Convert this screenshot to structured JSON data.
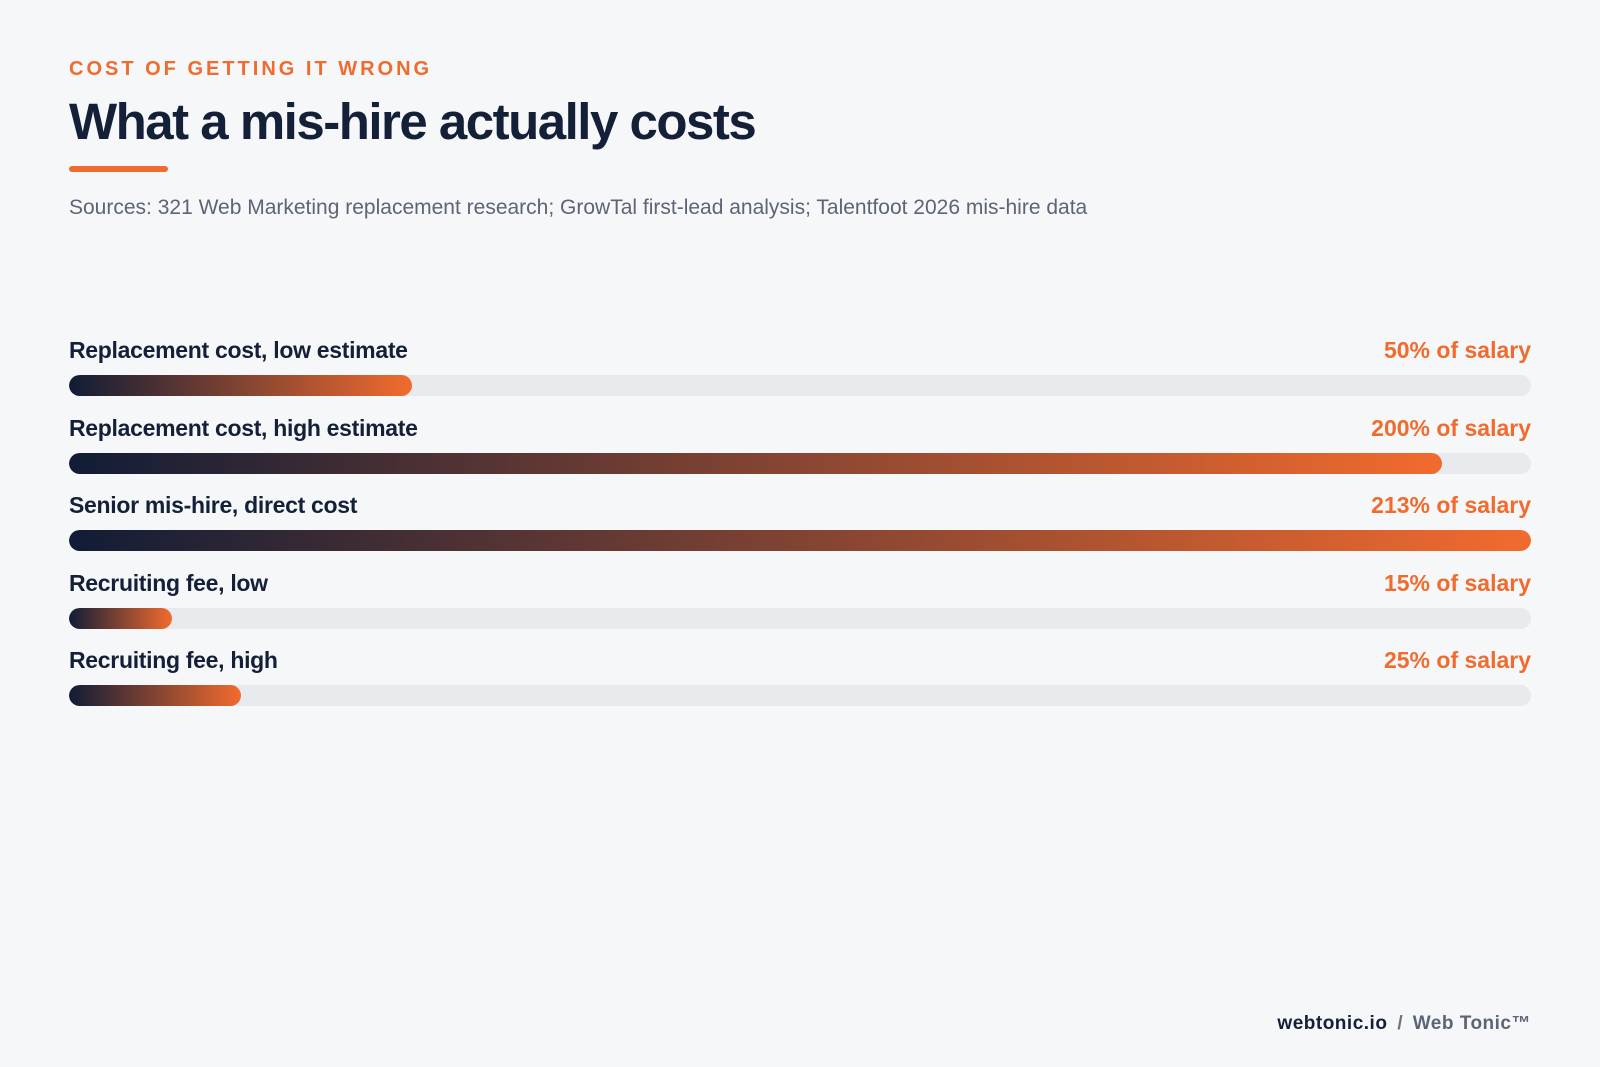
{
  "header": {
    "eyebrow": "COST OF GETTING IT WRONG",
    "title": "What a mis-hire actually costs",
    "sources": "Sources: 321 Web Marketing replacement research; GrowTal first-lead analysis; Talentfoot 2026 mis-hire data"
  },
  "colors": {
    "accent": "#f26b2e",
    "navy": "#142038",
    "track": "#e8eaee",
    "background": "#f6f7f9"
  },
  "chart_data": {
    "type": "bar",
    "orientation": "horizontal",
    "categories": [
      "Replacement cost, low estimate",
      "Replacement cost, high estimate",
      "Senior mis-hire, direct cost",
      "Recruiting fee, low",
      "Recruiting fee, high"
    ],
    "values": [
      50,
      200,
      213,
      15,
      25
    ],
    "value_labels": [
      "50% of salary",
      "200% of salary",
      "213% of salary",
      "15% of salary",
      "25% of salary"
    ],
    "xlim": [
      0,
      213
    ],
    "grid": false,
    "legend": "none"
  },
  "footer": {
    "domain": "webtonic.io",
    "separator": "/",
    "brand": "Web Tonic™"
  }
}
